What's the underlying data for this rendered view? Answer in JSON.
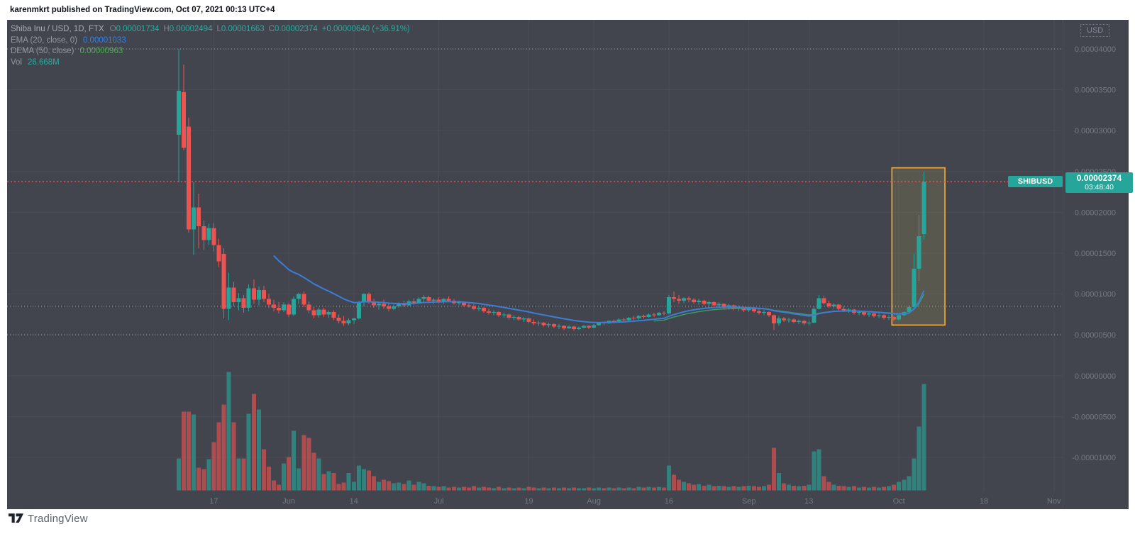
{
  "header": {
    "attribution": "karenmkrt published on TradingView.com, Oct 07, 2021 00:13 UTC+4"
  },
  "footer": {
    "brand": "TradingView"
  },
  "legend": {
    "title": "Shiba Inu / USD, 1D, FTX",
    "o_label": "O",
    "o": "0.00001734",
    "h_label": "H",
    "h": "0.00002494",
    "l_label": "L",
    "l": "0.00001663",
    "c_label": "C",
    "c": "0.00002374",
    "change": "+0.00000640 (+36.91%)",
    "ema_label": "EMA (20, close, 0)",
    "ema_value": "0.00001033",
    "dema_label": "DEMA (50, close)",
    "dema_value": "0.00000963",
    "vol_label": "Vol",
    "vol_value": "26.668M"
  },
  "price_axis": {
    "currency": "USD",
    "symbol_tag": "SHIBUSD",
    "last_price": "0.00002374",
    "countdown": "03:48:40",
    "ticks": [
      {
        "label": "0.00004000",
        "p": 4000
      },
      {
        "label": "0.00003500",
        "p": 3500
      },
      {
        "label": "0.00003000",
        "p": 3000
      },
      {
        "label": "0.00002500",
        "p": 2500
      },
      {
        "label": "0.00002000",
        "p": 2000
      },
      {
        "label": "0.00001500",
        "p": 1500
      },
      {
        "label": "0.00001000",
        "p": 1000
      },
      {
        "label": "0.00000500",
        "p": 500
      },
      {
        "label": "0.00000000",
        "p": 0
      },
      {
        "label": "-0.00000500",
        "p": -500
      },
      {
        "label": "-0.00001000",
        "p": -1000
      }
    ]
  },
  "time_axis": {
    "ticks": [
      {
        "label": "17",
        "i": 7
      },
      {
        "label": "Jun",
        "i": 22
      },
      {
        "label": "14",
        "i": 35
      },
      {
        "label": "Jul",
        "i": 52
      },
      {
        "label": "19",
        "i": 70
      },
      {
        "label": "Aug",
        "i": 83
      },
      {
        "label": "16",
        "i": 98
      },
      {
        "label": "Sep",
        "i": 114
      },
      {
        "label": "13",
        "i": 126
      },
      {
        "label": "Oct",
        "i": 144
      },
      {
        "label": "18",
        "i": 161
      },
      {
        "label": "Nov",
        "i": 175
      }
    ]
  },
  "levels": {
    "current_price": 2374,
    "dotted_lines": [
      4000,
      850,
      500
    ]
  },
  "highlight_box": {
    "i0": 142.6,
    "i1": 153.2,
    "p0": 620,
    "p1": 2545
  },
  "colors": {
    "up": "#26a69a",
    "down": "#ef5350",
    "ema": "#3b7dd8",
    "dema": "#3a9b5f",
    "box_stroke": "#f0a73e",
    "box_fill": "rgba(212,190,80,0.16)",
    "tag_bg": "#26a69a",
    "current_line": "#d25a5f",
    "grid": "rgba(255,255,255,0.045)",
    "dotted": "rgba(215,218,228,0.55)",
    "axis_text": "#757983"
  },
  "chart_data": {
    "type": "candlestick",
    "symbol": "SHIBUSD",
    "interval": "1D",
    "exchange": "FTX",
    "price_unit": "1e-8 USD",
    "volume_unit": "millions",
    "indicators": [
      {
        "name": "EMA",
        "period": 20
      },
      {
        "name": "DEMA",
        "period": 50
      }
    ],
    "candles": [
      [
        2950,
        4000,
        2370,
        3490,
        8.0
      ],
      [
        3470,
        3810,
        2760,
        2790,
        19.7
      ],
      [
        3050,
        3160,
        1750,
        1790,
        19.7
      ],
      [
        1790,
        2370,
        1480,
        2060,
        19.0
      ],
      [
        2060,
        2230,
        1560,
        1830,
        5.7
      ],
      [
        1830,
        1900,
        1540,
        1660,
        5.3
      ],
      [
        1660,
        1860,
        1600,
        1810,
        7.8
      ],
      [
        1810,
        1870,
        1520,
        1600,
        12.1
      ],
      [
        1600,
        1680,
        1330,
        1400,
        17.1
      ],
      [
        1490,
        1560,
        700,
        820,
        21.5
      ],
      [
        820,
        1260,
        680,
        1080,
        29.7
      ],
      [
        1080,
        1150,
        850,
        900,
        17.1
      ],
      [
        900,
        1010,
        800,
        950,
        8.0
      ],
      [
        950,
        990,
        770,
        830,
        8.0
      ],
      [
        830,
        1120,
        790,
        1070,
        19.2
      ],
      [
        1070,
        1180,
        880,
        930,
        24.2
      ],
      [
        930,
        1090,
        860,
        1050,
        20.3
      ],
      [
        1050,
        1100,
        900,
        940,
        10.3
      ],
      [
        940,
        1000,
        830,
        870,
        6.0
      ],
      [
        870,
        930,
        790,
        830,
        2.5
      ],
      [
        830,
        900,
        760,
        800,
        1.4
      ],
      [
        800,
        900,
        780,
        870,
        6.8
      ],
      [
        870,
        890,
        720,
        750,
        8.4
      ],
      [
        750,
        970,
        730,
        940,
        14.9
      ],
      [
        940,
        1020,
        880,
        1000,
        5.5
      ],
      [
        1000,
        1030,
        840,
        870,
        13.9
      ],
      [
        870,
        910,
        760,
        800,
        13.2
      ],
      [
        800,
        840,
        700,
        740,
        9.4
      ],
      [
        740,
        830,
        710,
        810,
        8.0
      ],
      [
        810,
        830,
        720,
        750,
        4.1
      ],
      [
        750,
        800,
        710,
        780,
        4.8
      ],
      [
        780,
        800,
        680,
        710,
        4.4
      ],
      [
        710,
        750,
        640,
        670,
        1.6
      ],
      [
        670,
        730,
        610,
        640,
        2.0
      ],
      [
        640,
        700,
        620,
        680,
        4.4
      ],
      [
        680,
        710,
        630,
        700,
        2.1
      ],
      [
        700,
        920,
        690,
        900,
        6.2
      ],
      [
        900,
        1010,
        850,
        1000,
        5.3
      ],
      [
        1000,
        1020,
        880,
        910,
        5.0
      ],
      [
        910,
        940,
        830,
        860,
        3.6
      ],
      [
        860,
        900,
        810,
        880,
        2.1
      ],
      [
        880,
        930,
        820,
        850,
        2.7
      ],
      [
        850,
        880,
        790,
        820,
        2.3
      ],
      [
        820,
        870,
        800,
        850,
        1.8
      ],
      [
        850,
        900,
        830,
        880,
        2.0
      ],
      [
        880,
        920,
        840,
        860,
        1.6
      ],
      [
        860,
        930,
        850,
        910,
        2.5
      ],
      [
        910,
        950,
        870,
        890,
        1.4
      ],
      [
        890,
        960,
        880,
        940,
        2.1
      ],
      [
        940,
        990,
        900,
        960,
        1.8
      ],
      [
        960,
        980,
        890,
        920,
        1.2
      ],
      [
        920,
        950,
        880,
        930,
        1.1
      ],
      [
        930,
        960,
        890,
        910,
        0.9
      ],
      [
        910,
        950,
        880,
        940,
        1.1
      ],
      [
        940,
        970,
        900,
        920,
        0.7
      ],
      [
        920,
        940,
        870,
        890,
        0.9
      ],
      [
        890,
        920,
        860,
        900,
        0.7
      ],
      [
        900,
        910,
        840,
        860,
        0.9
      ],
      [
        860,
        890,
        830,
        850,
        0.7
      ],
      [
        850,
        870,
        800,
        820,
        1.1
      ],
      [
        820,
        850,
        790,
        830,
        0.7
      ],
      [
        830,
        840,
        770,
        790,
        0.9
      ],
      [
        790,
        820,
        750,
        770,
        0.7
      ],
      [
        770,
        800,
        740,
        780,
        0.5
      ],
      [
        780,
        790,
        720,
        740,
        0.9
      ],
      [
        740,
        770,
        710,
        750,
        0.5
      ],
      [
        750,
        760,
        690,
        710,
        0.7
      ],
      [
        710,
        740,
        680,
        720,
        0.5
      ],
      [
        720,
        730,
        670,
        690,
        0.7
      ],
      [
        690,
        720,
        660,
        700,
        0.5
      ],
      [
        700,
        710,
        640,
        660,
        0.9
      ],
      [
        660,
        690,
        620,
        640,
        0.7
      ],
      [
        640,
        670,
        610,
        650,
        0.5
      ],
      [
        650,
        660,
        600,
        620,
        0.7
      ],
      [
        620,
        650,
        590,
        630,
        0.5
      ],
      [
        630,
        640,
        580,
        600,
        0.7
      ],
      [
        600,
        630,
        570,
        610,
        0.5
      ],
      [
        610,
        620,
        560,
        580,
        0.7
      ],
      [
        580,
        620,
        570,
        600,
        0.5
      ],
      [
        600,
        610,
        550,
        570,
        0.7
      ],
      [
        570,
        600,
        560,
        590,
        0.5
      ],
      [
        590,
        620,
        580,
        610,
        0.5
      ],
      [
        610,
        620,
        570,
        590,
        0.7
      ],
      [
        590,
        630,
        580,
        620,
        0.5
      ],
      [
        620,
        660,
        610,
        650,
        0.7
      ],
      [
        650,
        670,
        620,
        640,
        0.5
      ],
      [
        640,
        680,
        630,
        670,
        0.7
      ],
      [
        670,
        690,
        640,
        660,
        0.5
      ],
      [
        660,
        700,
        650,
        690,
        0.7
      ],
      [
        690,
        710,
        660,
        680,
        0.5
      ],
      [
        680,
        720,
        670,
        710,
        0.7
      ],
      [
        710,
        730,
        680,
        700,
        0.5
      ],
      [
        700,
        740,
        690,
        730,
        0.9
      ],
      [
        730,
        750,
        700,
        720,
        0.7
      ],
      [
        720,
        760,
        710,
        750,
        0.9
      ],
      [
        750,
        770,
        720,
        740,
        0.7
      ],
      [
        740,
        780,
        730,
        770,
        0.9
      ],
      [
        770,
        790,
        740,
        760,
        0.7
      ],
      [
        760,
        990,
        750,
        960,
        6.2
      ],
      [
        960,
        1030,
        900,
        940,
        3.9
      ],
      [
        940,
        990,
        880,
        920,
        2.7
      ],
      [
        920,
        960,
        890,
        950,
        2.1
      ],
      [
        950,
        970,
        900,
        930,
        1.8
      ],
      [
        930,
        950,
        880,
        900,
        1.4
      ],
      [
        900,
        940,
        870,
        920,
        1.6
      ],
      [
        920,
        930,
        860,
        880,
        1.2
      ],
      [
        880,
        920,
        850,
        900,
        1.4
      ],
      [
        900,
        910,
        840,
        860,
        1.1
      ],
      [
        860,
        900,
        830,
        880,
        1.2
      ],
      [
        880,
        890,
        820,
        840,
        1.1
      ],
      [
        840,
        880,
        810,
        860,
        0.9
      ],
      [
        860,
        870,
        800,
        820,
        1.1
      ],
      [
        820,
        860,
        790,
        840,
        0.9
      ],
      [
        840,
        850,
        780,
        800,
        1.1
      ],
      [
        800,
        840,
        780,
        830,
        1.2
      ],
      [
        830,
        840,
        770,
        790,
        1.1
      ],
      [
        790,
        820,
        750,
        770,
        0.9
      ],
      [
        770,
        800,
        740,
        780,
        1.1
      ],
      [
        780,
        790,
        720,
        740,
        1.4
      ],
      [
        740,
        750,
        560,
        640,
        10.7
      ],
      [
        640,
        730,
        610,
        700,
        4.4
      ],
      [
        700,
        720,
        660,
        680,
        1.8
      ],
      [
        680,
        710,
        650,
        690,
        1.4
      ],
      [
        690,
        700,
        640,
        660,
        1.2
      ],
      [
        660,
        690,
        630,
        670,
        1.1
      ],
      [
        670,
        680,
        620,
        640,
        1.2
      ],
      [
        640,
        670,
        620,
        650,
        1.4
      ],
      [
        650,
        850,
        640,
        820,
        9.8
      ],
      [
        820,
        990,
        810,
        950,
        10.3
      ],
      [
        950,
        980,
        870,
        890,
        3.6
      ],
      [
        890,
        920,
        830,
        850,
        2.1
      ],
      [
        850,
        890,
        820,
        870,
        1.4
      ],
      [
        870,
        880,
        800,
        820,
        1.2
      ],
      [
        820,
        850,
        780,
        800,
        1.1
      ],
      [
        800,
        830,
        770,
        810,
        0.9
      ],
      [
        810,
        820,
        750,
        770,
        1.1
      ],
      [
        770,
        800,
        740,
        780,
        0.7
      ],
      [
        780,
        790,
        730,
        750,
        0.9
      ],
      [
        750,
        780,
        720,
        760,
        0.7
      ],
      [
        760,
        770,
        710,
        730,
        0.9
      ],
      [
        730,
        760,
        700,
        740,
        0.7
      ],
      [
        740,
        750,
        690,
        710,
        0.9
      ],
      [
        710,
        740,
        680,
        720,
        1.1
      ],
      [
        720,
        730,
        670,
        690,
        1.4
      ],
      [
        690,
        750,
        680,
        740,
        2.1
      ],
      [
        740,
        790,
        730,
        780,
        2.7
      ],
      [
        780,
        860,
        770,
        840,
        3.6
      ],
      [
        840,
        1490,
        830,
        1310,
        8.0
      ],
      [
        1310,
        1970,
        1160,
        1710,
        16.0
      ],
      [
        1734,
        2494,
        1663,
        2374,
        26.668
      ]
    ]
  }
}
